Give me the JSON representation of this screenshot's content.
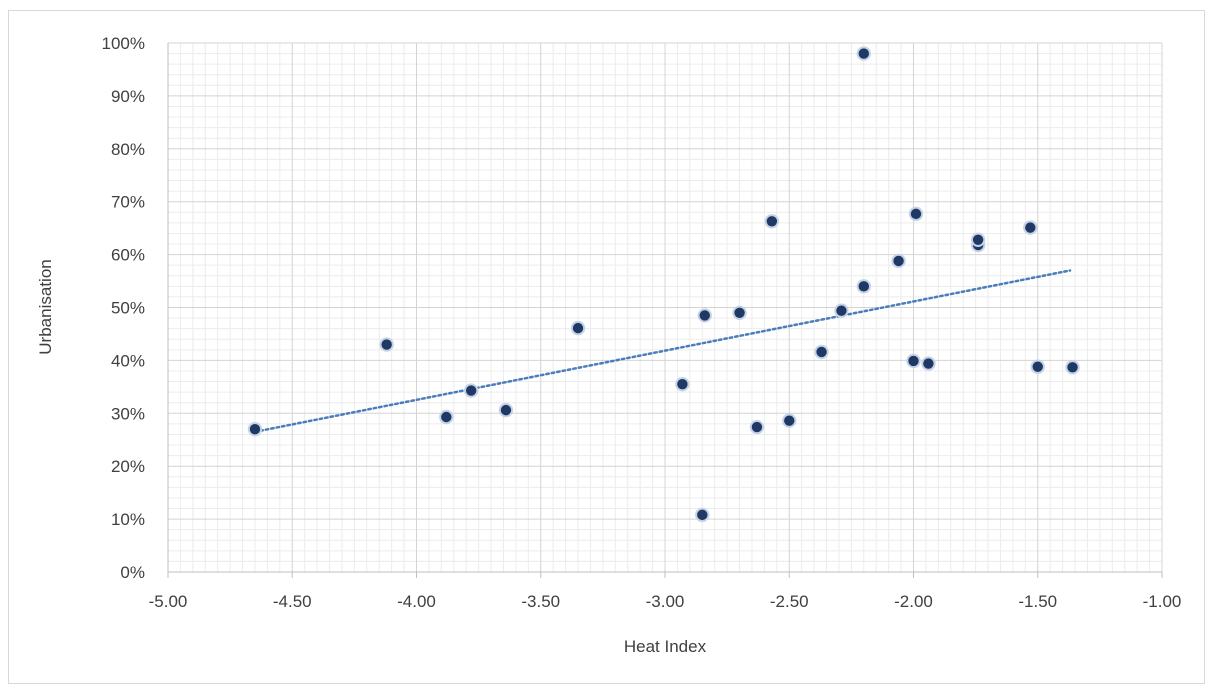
{
  "chart_data": {
    "type": "scatter",
    "xlabel": "Heat Index",
    "ylabel": "Urbanisation",
    "xlim": [
      -5.0,
      -1.0
    ],
    "ylim": [
      0,
      100
    ],
    "x_ticks": [
      "-5.00",
      "-4.50",
      "-4.00",
      "-3.50",
      "-3.00",
      "-2.50",
      "-2.00",
      "-1.50",
      "-1.00"
    ],
    "y_ticks": [
      "0%",
      "10%",
      "20%",
      "30%",
      "40%",
      "50%",
      "60%",
      "70%",
      "80%",
      "90%",
      "100%"
    ],
    "grid": true,
    "minor_grid": true,
    "marker_color": "#1f3864",
    "marker_edge_color": "#c5d3e8",
    "trendline": {
      "style": "dotted",
      "color": "#4a7ebb",
      "type": "linear",
      "points": [
        [
          -4.65,
          26.5
        ],
        [
          -1.37,
          57.0
        ]
      ]
    },
    "points": [
      {
        "x": -4.65,
        "y": 27.0
      },
      {
        "x": -4.12,
        "y": 43.0
      },
      {
        "x": -3.88,
        "y": 29.3
      },
      {
        "x": -3.78,
        "y": 34.3
      },
      {
        "x": -3.64,
        "y": 30.6
      },
      {
        "x": -3.35,
        "y": 46.1
      },
      {
        "x": -2.93,
        "y": 35.5
      },
      {
        "x": -2.85,
        "y": 10.8
      },
      {
        "x": -2.84,
        "y": 48.5
      },
      {
        "x": -2.7,
        "y": 49.0
      },
      {
        "x": -2.63,
        "y": 27.4
      },
      {
        "x": -2.57,
        "y": 66.3
      },
      {
        "x": -2.5,
        "y": 28.6
      },
      {
        "x": -2.37,
        "y": 41.6
      },
      {
        "x": -2.29,
        "y": 49.4
      },
      {
        "x": -2.2,
        "y": 54.0
      },
      {
        "x": -2.2,
        "y": 98.0
      },
      {
        "x": -2.06,
        "y": 58.8
      },
      {
        "x": -2.0,
        "y": 39.9
      },
      {
        "x": -1.99,
        "y": 67.7
      },
      {
        "x": -1.94,
        "y": 39.4
      },
      {
        "x": -1.74,
        "y": 61.8
      },
      {
        "x": -1.74,
        "y": 62.8
      },
      {
        "x": -1.53,
        "y": 65.1
      },
      {
        "x": -1.5,
        "y": 38.8
      },
      {
        "x": -1.36,
        "y": 38.7
      }
    ]
  }
}
